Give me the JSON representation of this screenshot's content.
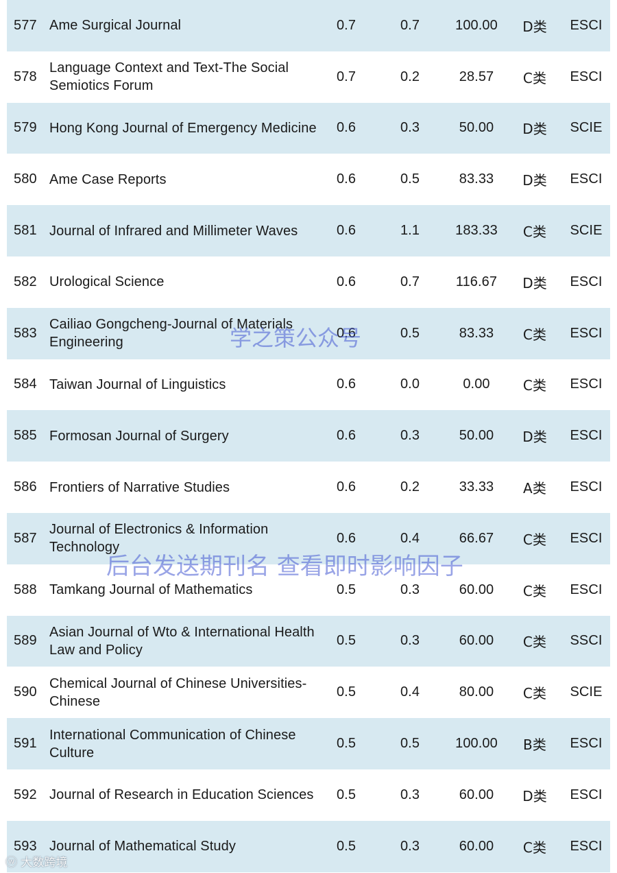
{
  "rows": [
    {
      "rank": "577",
      "name": "Ame Surgical Journal",
      "if": "0.7",
      "if2": "0.7",
      "pct": "100.00",
      "cat": "D类",
      "idx": "ESCI"
    },
    {
      "rank": "578",
      "name": "Language Context and Text-The Social Semiotics Forum",
      "if": "0.7",
      "if2": "0.2",
      "pct": "28.57",
      "cat": "C类",
      "idx": "ESCI"
    },
    {
      "rank": "579",
      "name": "Hong Kong Journal of Emergency Medicine",
      "if": "0.6",
      "if2": "0.3",
      "pct": "50.00",
      "cat": "D类",
      "idx": "SCIE"
    },
    {
      "rank": "580",
      "name": "Ame Case Reports",
      "if": "0.6",
      "if2": "0.5",
      "pct": "83.33",
      "cat": "D类",
      "idx": "ESCI"
    },
    {
      "rank": "581",
      "name": "Journal of Infrared and Millimeter Waves",
      "if": "0.6",
      "if2": "1.1",
      "pct": "183.33",
      "cat": "C类",
      "idx": "SCIE"
    },
    {
      "rank": "582",
      "name": "Urological Science",
      "if": "0.6",
      "if2": "0.7",
      "pct": "116.67",
      "cat": "D类",
      "idx": "ESCI"
    },
    {
      "rank": "583",
      "name": "Cailiao Gongcheng-Journal of Materials Engineering",
      "if": "0.6",
      "if2": "0.5",
      "pct": "83.33",
      "cat": "C类",
      "idx": "ESCI"
    },
    {
      "rank": "584",
      "name": "Taiwan Journal of Linguistics",
      "if": "0.6",
      "if2": "0.0",
      "pct": "0.00",
      "cat": "C类",
      "idx": "ESCI"
    },
    {
      "rank": "585",
      "name": "Formosan Journal of Surgery",
      "if": "0.6",
      "if2": "0.3",
      "pct": "50.00",
      "cat": "D类",
      "idx": "ESCI"
    },
    {
      "rank": "586",
      "name": "Frontiers of Narrative Studies",
      "if": "0.6",
      "if2": "0.2",
      "pct": "33.33",
      "cat": "A类",
      "idx": "ESCI"
    },
    {
      "rank": "587",
      "name": "Journal of Electronics & Information Technology",
      "if": "0.6",
      "if2": "0.4",
      "pct": "66.67",
      "cat": "C类",
      "idx": "ESCI"
    },
    {
      "rank": "588",
      "name": "Tamkang Journal of Mathematics",
      "if": "0.5",
      "if2": "0.3",
      "pct": "60.00",
      "cat": "C类",
      "idx": "ESCI"
    },
    {
      "rank": "589",
      "name": "Asian Journal of Wto & International Health Law and Policy",
      "if": "0.5",
      "if2": "0.3",
      "pct": "60.00",
      "cat": "C类",
      "idx": "SSCI"
    },
    {
      "rank": "590",
      "name": "Chemical Journal of Chinese Universities-Chinese",
      "if": "0.5",
      "if2": "0.4",
      "pct": "80.00",
      "cat": "C类",
      "idx": "SCIE"
    },
    {
      "rank": "591",
      "name": "International Communication of Chinese Culture",
      "if": "0.5",
      "if2": "0.5",
      "pct": "100.00",
      "cat": "B类",
      "idx": "ESCI"
    },
    {
      "rank": "592",
      "name": "Journal of Research in Education Sciences",
      "if": "0.5",
      "if2": "0.3",
      "pct": "60.00",
      "cat": "D类",
      "idx": "ESCI"
    },
    {
      "rank": "593",
      "name": "Journal of Mathematical Study",
      "if": "0.5",
      "if2": "0.3",
      "pct": "60.00",
      "cat": "C类",
      "idx": "ESCI"
    }
  ],
  "watermarks": {
    "primary": "学之策公众号",
    "secondary": "后台发送期刊名 查看即时影响因子",
    "corner": "大数跨境"
  },
  "colors": {
    "row_shade": "#d7e9f1",
    "row_plain": "#ffffff",
    "watermark": "#465ad2"
  }
}
